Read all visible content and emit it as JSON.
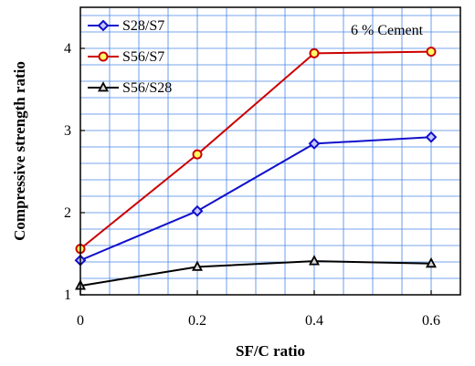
{
  "chart_data": {
    "type": "line",
    "xlabel": "SF/C ratio",
    "ylabel": "Compressive strength ratio",
    "annotation": "6 % Cement",
    "xlim": [
      0,
      0.65
    ],
    "ylim": [
      1,
      4.5
    ],
    "x_ticks": [
      "0",
      "0.2",
      "0.4",
      "0.6"
    ],
    "y_ticks": [
      "1",
      "2",
      "3",
      "4"
    ],
    "x_tick_values": [
      0,
      0.2,
      0.4,
      0.6
    ],
    "y_tick_values": [
      1,
      2,
      3,
      4
    ],
    "grid": true,
    "legend_position": "top-left",
    "series": [
      {
        "name": "S28/S7",
        "color": "#1010cc",
        "marker": "diamond",
        "marker_fill": "#c8c8ff",
        "x": [
          0,
          0.2,
          0.4,
          0.6
        ],
        "values": [
          1.42,
          2.02,
          2.84,
          2.92
        ]
      },
      {
        "name": "S56/S7",
        "color": "#cc0000",
        "marker": "circle",
        "marker_fill": "#ffff66",
        "x": [
          0,
          0.2,
          0.4,
          0.6
        ],
        "values": [
          1.56,
          2.71,
          3.94,
          3.96
        ]
      },
      {
        "name": "S56/S28",
        "color": "#000000",
        "marker": "triangle",
        "marker_fill": "#d8d8d8",
        "x": [
          0,
          0.2,
          0.4,
          0.6
        ],
        "values": [
          1.11,
          1.34,
          1.41,
          1.38
        ]
      }
    ],
    "colors": {
      "grid": "#4a86e8",
      "axis": "#000000"
    }
  }
}
